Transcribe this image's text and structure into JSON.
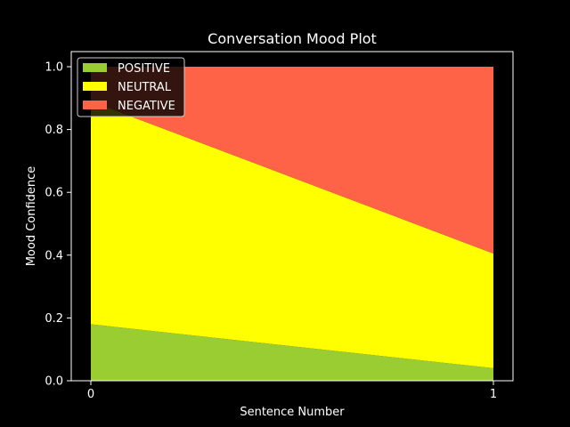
{
  "chart_data": {
    "type": "area",
    "stacked": true,
    "title": "Conversation Mood Plot",
    "xlabel": "Sentence Number",
    "ylabel": "Mood Confidence",
    "x": [
      0,
      1
    ],
    "xticks": [
      "0",
      "1"
    ],
    "ylim": [
      0,
      1.0
    ],
    "yticks": [
      "0.0",
      "0.2",
      "0.4",
      "0.6",
      "0.8",
      "1.0"
    ],
    "grid": false,
    "legend_position": "top-left",
    "series": [
      {
        "name": "POSITIVE",
        "color": "#9ACD32",
        "values": [
          0.18,
          0.04
        ]
      },
      {
        "name": "NEUTRAL",
        "color": "#FFFF00",
        "values": [
          0.71,
          0.365
        ]
      },
      {
        "name": "NEGATIVE",
        "color": "#FF6347",
        "values": [
          0.11,
          0.595
        ]
      }
    ]
  }
}
